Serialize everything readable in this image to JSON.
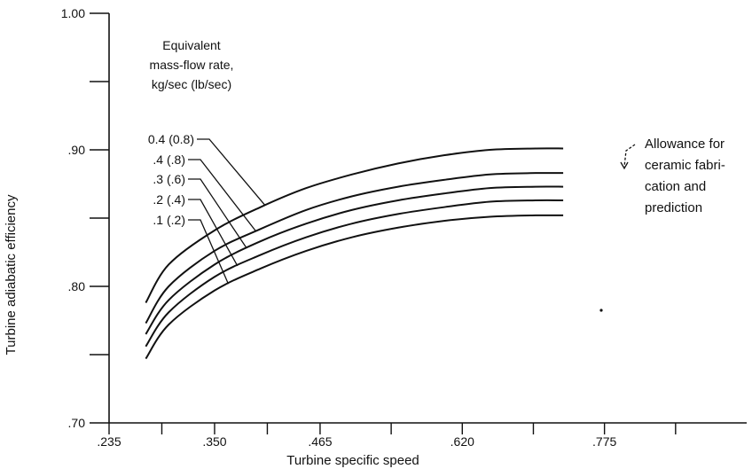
{
  "chart_data": {
    "type": "line",
    "xlabel": "Turbine specific speed",
    "ylabel": "Turbine adiabatic efficiency",
    "xlim": [
      0.235,
      0.93
    ],
    "ylim": [
      0.7,
      1.0
    ],
    "x_tick_labels": [
      ".235",
      ".350",
      ".465",
      ".620",
      ".775"
    ],
    "y_tick_labels": [
      ".70",
      ".80",
      ".90",
      "1.00"
    ],
    "legend_title": [
      "Equivalent",
      "mass-flow rate,",
      "kg/sec (lb/sec)"
    ],
    "series": [
      {
        "name": "0.4 (0.8)",
        "x": [
          0.275,
          0.3,
          0.35,
          0.4,
          0.45,
          0.5,
          0.55,
          0.6,
          0.65,
          0.7,
          0.73
        ],
        "y": [
          0.788,
          0.816,
          0.841,
          0.858,
          0.872,
          0.882,
          0.89,
          0.896,
          0.9,
          0.901,
          0.901
        ]
      },
      {
        "name": ".4 (.8)",
        "x": [
          0.275,
          0.3,
          0.35,
          0.4,
          0.45,
          0.5,
          0.55,
          0.6,
          0.65,
          0.7,
          0.73
        ],
        "y": [
          0.773,
          0.8,
          0.826,
          0.842,
          0.856,
          0.866,
          0.873,
          0.878,
          0.882,
          0.883,
          0.883
        ]
      },
      {
        "name": ".3 (.6)",
        "x": [
          0.275,
          0.3,
          0.35,
          0.4,
          0.45,
          0.5,
          0.55,
          0.6,
          0.65,
          0.7,
          0.73
        ],
        "y": [
          0.765,
          0.79,
          0.816,
          0.833,
          0.846,
          0.856,
          0.863,
          0.868,
          0.872,
          0.873,
          0.873
        ]
      },
      {
        "name": ".2 (.4)",
        "x": [
          0.275,
          0.3,
          0.35,
          0.4,
          0.45,
          0.5,
          0.55,
          0.6,
          0.65,
          0.7,
          0.73
        ],
        "y": [
          0.756,
          0.781,
          0.807,
          0.823,
          0.836,
          0.846,
          0.853,
          0.858,
          0.862,
          0.863,
          0.863
        ]
      },
      {
        "name": ".1 (.2)",
        "x": [
          0.275,
          0.3,
          0.35,
          0.4,
          0.45,
          0.5,
          0.55,
          0.6,
          0.65,
          0.7,
          0.73
        ],
        "y": [
          0.747,
          0.772,
          0.797,
          0.813,
          0.826,
          0.836,
          0.843,
          0.848,
          0.851,
          0.852,
          0.852
        ]
      }
    ],
    "annotation": [
      "Allowance for",
      "ceramic fabri-",
      "cation and",
      "prediction"
    ],
    "grid": false
  }
}
